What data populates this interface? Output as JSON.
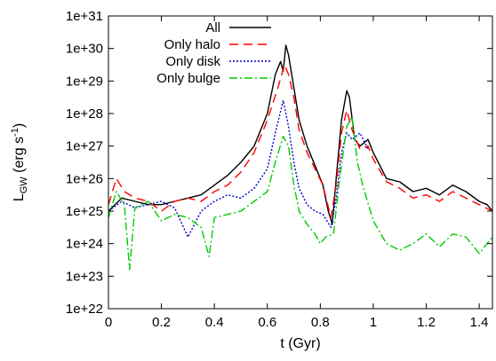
{
  "chart_data": {
    "type": "line",
    "xlabel": "t (Gyr)",
    "ylabel": {
      "base": "L",
      "sub": "GW",
      "units_open": " (erg s",
      "units_sup": "-1",
      "units_close": ")"
    },
    "xlim": [
      0,
      1.45
    ],
    "ylim_log10": [
      22,
      31
    ],
    "y_scale": "log",
    "x_ticks": [
      0,
      0.2,
      0.4,
      0.6,
      0.8,
      1,
      1.2,
      1.4
    ],
    "x_tick_labels": [
      "0",
      "0.2",
      "0.4",
      "0.6",
      "0.8",
      "1",
      "1.2",
      "1.4"
    ],
    "y_tick_labels": [
      "1e+22",
      "1e+23",
      "1e+24",
      "1e+25",
      "1e+26",
      "1e+27",
      "1e+28",
      "1e+29",
      "1e+30",
      "1e+31"
    ],
    "grid": false,
    "legend_position": "top-left",
    "series": [
      {
        "name": "All",
        "color": "#000000",
        "dash": "solid",
        "points": [
          [
            0,
            25.0
          ],
          [
            0.05,
            25.4
          ],
          [
            0.1,
            25.3
          ],
          [
            0.15,
            25.2
          ],
          [
            0.2,
            25.2
          ],
          [
            0.25,
            25.3
          ],
          [
            0.3,
            25.4
          ],
          [
            0.35,
            25.5
          ],
          [
            0.4,
            25.8
          ],
          [
            0.45,
            26.1
          ],
          [
            0.5,
            26.5
          ],
          [
            0.55,
            27.0
          ],
          [
            0.6,
            28.0
          ],
          [
            0.63,
            29.2
          ],
          [
            0.65,
            29.6
          ],
          [
            0.66,
            29.3
          ],
          [
            0.67,
            30.1
          ],
          [
            0.68,
            29.8
          ],
          [
            0.7,
            28.8
          ],
          [
            0.72,
            27.8
          ],
          [
            0.75,
            27.0
          ],
          [
            0.78,
            26.4
          ],
          [
            0.81,
            25.8
          ],
          [
            0.83,
            25.0
          ],
          [
            0.845,
            24.6
          ],
          [
            0.86,
            26.0
          ],
          [
            0.88,
            27.8
          ],
          [
            0.9,
            28.7
          ],
          [
            0.91,
            28.5
          ],
          [
            0.93,
            27.2
          ],
          [
            0.95,
            27.0
          ],
          [
            0.98,
            27.2
          ],
          [
            1.0,
            26.8
          ],
          [
            1.05,
            26.0
          ],
          [
            1.1,
            25.9
          ],
          [
            1.15,
            25.6
          ],
          [
            1.2,
            25.7
          ],
          [
            1.25,
            25.5
          ],
          [
            1.3,
            25.8
          ],
          [
            1.35,
            25.6
          ],
          [
            1.4,
            25.3
          ],
          [
            1.43,
            25.2
          ],
          [
            1.45,
            25.0
          ]
        ]
      },
      {
        "name": "Only halo",
        "color": "#ff0000",
        "dash": "10,6",
        "points": [
          [
            0,
            25.2
          ],
          [
            0.03,
            26.0
          ],
          [
            0.06,
            25.6
          ],
          [
            0.1,
            25.4
          ],
          [
            0.15,
            25.3
          ],
          [
            0.2,
            25.0
          ],
          [
            0.25,
            25.3
          ],
          [
            0.3,
            25.4
          ],
          [
            0.35,
            25.3
          ],
          [
            0.4,
            25.6
          ],
          [
            0.45,
            25.8
          ],
          [
            0.5,
            26.2
          ],
          [
            0.55,
            26.8
          ],
          [
            0.6,
            27.8
          ],
          [
            0.64,
            28.8
          ],
          [
            0.665,
            29.5
          ],
          [
            0.68,
            29.2
          ],
          [
            0.7,
            28.5
          ],
          [
            0.72,
            27.5
          ],
          [
            0.75,
            26.8
          ],
          [
            0.78,
            26.3
          ],
          [
            0.81,
            25.8
          ],
          [
            0.84,
            24.8
          ],
          [
            0.86,
            25.8
          ],
          [
            0.88,
            27.4
          ],
          [
            0.9,
            28.1
          ],
          [
            0.92,
            27.5
          ],
          [
            0.95,
            26.9
          ],
          [
            0.98,
            27.0
          ],
          [
            1.0,
            26.6
          ],
          [
            1.05,
            25.9
          ],
          [
            1.1,
            25.7
          ],
          [
            1.15,
            25.4
          ],
          [
            1.2,
            25.5
          ],
          [
            1.25,
            25.3
          ],
          [
            1.3,
            25.6
          ],
          [
            1.35,
            25.4
          ],
          [
            1.4,
            25.2
          ],
          [
            1.45,
            25.0
          ]
        ]
      },
      {
        "name": "Only disk",
        "color": "#0000cc",
        "dash": "2,2",
        "points": [
          [
            0,
            25.0
          ],
          [
            0.05,
            25.3
          ],
          [
            0.1,
            25.1
          ],
          [
            0.15,
            25.2
          ],
          [
            0.2,
            25.3
          ],
          [
            0.25,
            25.1
          ],
          [
            0.3,
            24.2
          ],
          [
            0.35,
            25.0
          ],
          [
            0.4,
            25.3
          ],
          [
            0.45,
            25.5
          ],
          [
            0.5,
            25.4
          ],
          [
            0.55,
            25.7
          ],
          [
            0.6,
            26.3
          ],
          [
            0.63,
            27.4
          ],
          [
            0.66,
            28.4
          ],
          [
            0.68,
            27.6
          ],
          [
            0.7,
            26.5
          ],
          [
            0.72,
            25.7
          ],
          [
            0.75,
            25.2
          ],
          [
            0.78,
            25.0
          ],
          [
            0.81,
            24.9
          ],
          [
            0.84,
            24.5
          ],
          [
            0.86,
            25.4
          ],
          [
            0.88,
            26.8
          ],
          [
            0.9,
            27.4
          ],
          [
            0.92,
            27.2
          ],
          [
            0.95,
            27.4
          ],
          [
            0.98,
            26.9
          ]
        ]
      },
      {
        "name": "Only bulge",
        "color": "#00cc00",
        "dash": "9,3,2,3",
        "points": [
          [
            0,
            24.8
          ],
          [
            0.03,
            25.6
          ],
          [
            0.06,
            25.2
          ],
          [
            0.08,
            23.2
          ],
          [
            0.1,
            25.1
          ],
          [
            0.15,
            25.3
          ],
          [
            0.2,
            24.7
          ],
          [
            0.25,
            24.9
          ],
          [
            0.3,
            24.8
          ],
          [
            0.35,
            24.5
          ],
          [
            0.38,
            23.6
          ],
          [
            0.4,
            24.8
          ],
          [
            0.45,
            24.9
          ],
          [
            0.5,
            25.0
          ],
          [
            0.55,
            25.3
          ],
          [
            0.6,
            25.6
          ],
          [
            0.63,
            26.5
          ],
          [
            0.66,
            27.3
          ],
          [
            0.68,
            27.0
          ],
          [
            0.7,
            25.8
          ],
          [
            0.72,
            25.0
          ],
          [
            0.75,
            24.6
          ],
          [
            0.78,
            24.3
          ],
          [
            0.8,
            24.0
          ],
          [
            0.82,
            24.2
          ],
          [
            0.85,
            24.3
          ],
          [
            0.87,
            25.8
          ],
          [
            0.9,
            27.6
          ],
          [
            0.92,
            27.9
          ],
          [
            0.94,
            26.5
          ],
          [
            0.96,
            25.8
          ],
          [
            1.0,
            24.7
          ],
          [
            1.05,
            24.0
          ],
          [
            1.1,
            23.8
          ],
          [
            1.15,
            24.0
          ],
          [
            1.2,
            24.3
          ],
          [
            1.25,
            23.9
          ],
          [
            1.3,
            24.3
          ],
          [
            1.35,
            24.2
          ],
          [
            1.4,
            23.7
          ],
          [
            1.45,
            24.2
          ]
        ]
      }
    ]
  }
}
